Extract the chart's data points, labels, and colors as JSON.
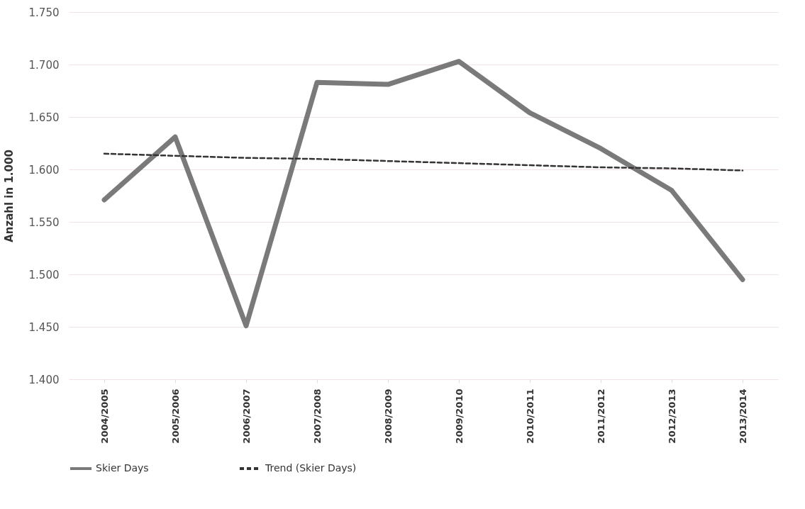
{
  "chart_data": {
    "type": "line",
    "ylabel": "Anzahl in 1.000",
    "categories": [
      "2004/2005",
      "2005/2006",
      "2006/2007",
      "2007/2008",
      "2008/2009",
      "2009/2010",
      "2010/2011",
      "2011/2012",
      "2012/2013",
      "2013/2014"
    ],
    "series": [
      {
        "name": "Skier Days",
        "color": "#7a7a7a",
        "type": "line",
        "line_style": "solid",
        "values": [
          1571,
          1631,
          1451,
          1683,
          1681,
          1703,
          1654,
          1620,
          1580,
          1495
        ]
      },
      {
        "name": "Trend (Skier Days)",
        "color": "#333333",
        "type": "line",
        "line_style": "dashed",
        "values": [
          1615,
          1613,
          1611,
          1610,
          1608,
          1606,
          1604,
          1602,
          1601,
          1599
        ]
      }
    ],
    "ylim": [
      1400,
      1750
    ],
    "yticks": [
      {
        "value": 1400,
        "label": "1.400"
      },
      {
        "value": 1450,
        "label": "1.450"
      },
      {
        "value": 1500,
        "label": "1.500"
      },
      {
        "value": 1550,
        "label": "1.550"
      },
      {
        "value": 1600,
        "label": "1.600"
      },
      {
        "value": 1650,
        "label": "1.650"
      },
      {
        "value": 1700,
        "label": "1.700"
      },
      {
        "value": 1750,
        "label": "1.750"
      }
    ],
    "grid": "y",
    "legend": "bottom",
    "marker": "none"
  }
}
